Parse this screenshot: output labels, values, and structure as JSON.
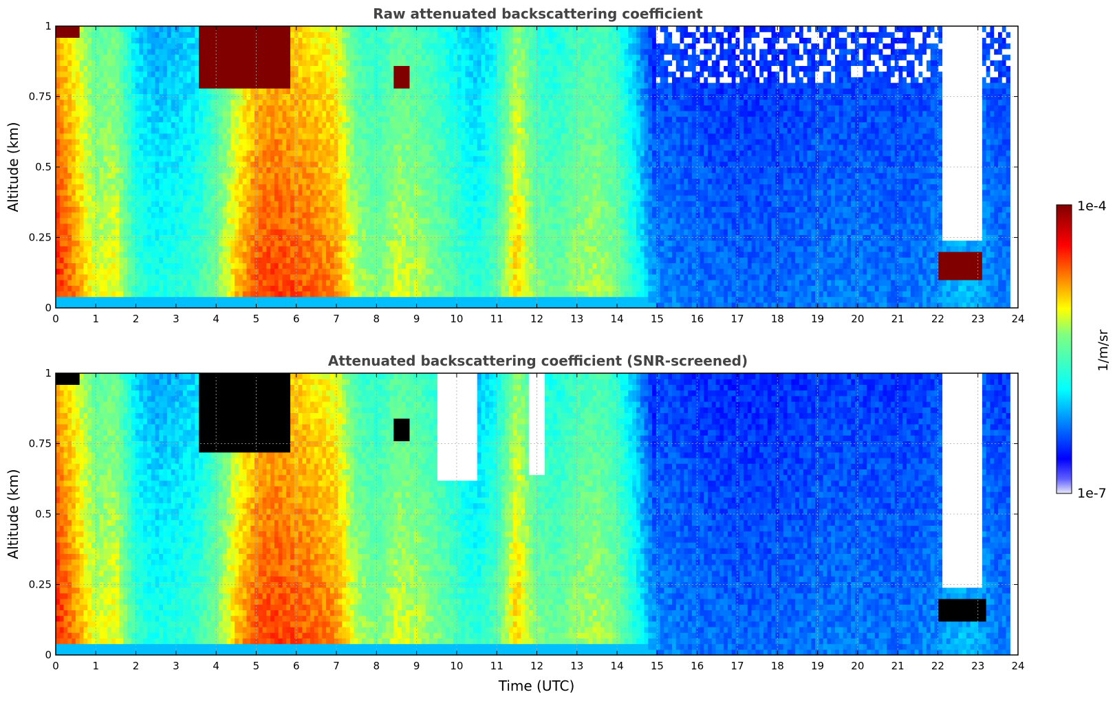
{
  "chart_data": [
    {
      "type": "heatmap",
      "title": "Raw attenuated backscattering coefficient",
      "xlabel": "",
      "ylabel": "Altitude (km)",
      "xlim": [
        0,
        24
      ],
      "ylim": [
        0,
        1
      ],
      "xticks": [
        "0",
        "1",
        "2",
        "3",
        "4",
        "5",
        "6",
        "7",
        "8",
        "9",
        "10",
        "11",
        "12",
        "13",
        "14",
        "15",
        "16",
        "17",
        "18",
        "19",
        "20",
        "21",
        "22",
        "23",
        "24"
      ],
      "yticks": [
        "0",
        "0.25",
        "0.5",
        "0.75",
        "1"
      ],
      "grid": true,
      "colormap": "jet",
      "screened": false,
      "time_profile": [
        {
          "t": 0.0,
          "v": 0.85
        },
        {
          "t": 0.5,
          "v": 0.75
        },
        {
          "t": 1.0,
          "v": 0.62
        },
        {
          "t": 1.5,
          "v": 0.65
        },
        {
          "t": 2.0,
          "v": 0.45
        },
        {
          "t": 2.5,
          "v": 0.4
        },
        {
          "t": 3.0,
          "v": 0.42
        },
        {
          "t": 3.5,
          "v": 0.45
        },
        {
          "t": 4.0,
          "v": 0.55
        },
        {
          "t": 4.5,
          "v": 0.7
        },
        {
          "t": 5.0,
          "v": 0.8
        },
        {
          "t": 5.5,
          "v": 0.82
        },
        {
          "t": 6.0,
          "v": 0.8
        },
        {
          "t": 6.5,
          "v": 0.78
        },
        {
          "t": 7.0,
          "v": 0.75
        },
        {
          "t": 7.5,
          "v": 0.6
        },
        {
          "t": 8.0,
          "v": 0.55
        },
        {
          "t": 8.5,
          "v": 0.62
        },
        {
          "t": 9.0,
          "v": 0.6
        },
        {
          "t": 9.5,
          "v": 0.55
        },
        {
          "t": 10.0,
          "v": 0.48
        },
        {
          "t": 10.5,
          "v": 0.42
        },
        {
          "t": 11.0,
          "v": 0.5
        },
        {
          "t": 11.5,
          "v": 0.7
        },
        {
          "t": 12.0,
          "v": 0.55
        },
        {
          "t": 12.5,
          "v": 0.52
        },
        {
          "t": 13.0,
          "v": 0.58
        },
        {
          "t": 13.5,
          "v": 0.6
        },
        {
          "t": 14.0,
          "v": 0.55
        },
        {
          "t": 14.5,
          "v": 0.4
        },
        {
          "t": 15.0,
          "v": 0.25
        },
        {
          "t": 16.0,
          "v": 0.23
        },
        {
          "t": 17.0,
          "v": 0.22
        },
        {
          "t": 18.0,
          "v": 0.22
        },
        {
          "t": 19.0,
          "v": 0.24
        },
        {
          "t": 20.0,
          "v": 0.24
        },
        {
          "t": 21.0,
          "v": 0.23
        },
        {
          "t": 22.0,
          "v": 0.25
        },
        {
          "t": 22.5,
          "v": 0.3
        },
        {
          "t": 23.0,
          "v": 0.28
        },
        {
          "t": 23.5,
          "v": 0.24
        },
        {
          "t": 23.8,
          "v": 0.24
        }
      ],
      "features": [
        {
          "kind": "cloud",
          "t0": 3.6,
          "t1": 5.9,
          "z0": 0.78,
          "z1": 1.0,
          "v": 1.05
        },
        {
          "kind": "cloud",
          "t0": 8.45,
          "t1": 8.8,
          "z0": 0.79,
          "z1": 0.86,
          "v": 1.05
        },
        {
          "kind": "cloud",
          "t0": 0.0,
          "t1": 0.6,
          "z0": 0.97,
          "z1": 1.0,
          "v": 1.05
        },
        {
          "kind": "cloud",
          "t0": 22.05,
          "t1": 23.1,
          "z0": 0.1,
          "z1": 0.19,
          "v": 1.05
        },
        {
          "kind": "nodata",
          "t0": 22.15,
          "t1": 23.15,
          "z0": 0.24,
          "z1": 1.0
        }
      ]
    },
    {
      "type": "heatmap",
      "title": "Attenuated backscattering coefficient (SNR-screened)",
      "xlabel": "Time (UTC)",
      "ylabel": "Altitude (km)",
      "xlim": [
        0,
        24
      ],
      "ylim": [
        0,
        1
      ],
      "xticks": [
        "0",
        "1",
        "2",
        "3",
        "4",
        "5",
        "6",
        "7",
        "8",
        "9",
        "10",
        "11",
        "12",
        "13",
        "14",
        "15",
        "16",
        "17",
        "18",
        "19",
        "20",
        "21",
        "22",
        "23",
        "24"
      ],
      "yticks": [
        "0",
        "0.25",
        "0.5",
        "0.75",
        "1"
      ],
      "grid": true,
      "colormap": "jet",
      "screened": true,
      "time_profile": "same as raw",
      "features": [
        {
          "kind": "saturated",
          "t0": 3.6,
          "t1": 5.9,
          "z0": 0.73,
          "z1": 1.0
        },
        {
          "kind": "saturated",
          "t0": 8.45,
          "t1": 8.8,
          "z0": 0.77,
          "z1": 0.83
        },
        {
          "kind": "saturated",
          "t0": 0.0,
          "t1": 0.6,
          "z0": 0.97,
          "z1": 1.0
        },
        {
          "kind": "saturated",
          "t0": 22.05,
          "t1": 23.25,
          "z0": 0.12,
          "z1": 0.19
        },
        {
          "kind": "nodata",
          "t0": 22.15,
          "t1": 23.15,
          "z0": 0.24,
          "z1": 1.0
        },
        {
          "kind": "nodata",
          "t0": 9.5,
          "t1": 10.5,
          "z0": 0.62,
          "z1": 1.0
        },
        {
          "kind": "nodata",
          "t0": 11.8,
          "t1": 12.2,
          "z0": 0.65,
          "z1": 1.0
        }
      ]
    }
  ],
  "colorbar": {
    "max_label": "1e-4",
    "min_label": "1e-7",
    "unit_label": "1/m/sr"
  },
  "colors": {
    "title": "#444444",
    "saturated": "#000000",
    "nodata": "#ffffff"
  }
}
